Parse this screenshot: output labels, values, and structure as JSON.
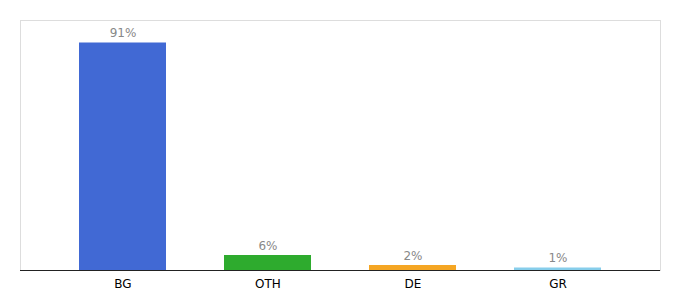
{
  "chart_data": {
    "type": "bar",
    "categories": [
      "BG",
      "OTH",
      "DE",
      "GR"
    ],
    "values": [
      91,
      6,
      2,
      1
    ],
    "value_labels": [
      "91%",
      "6%",
      "2%",
      "1%"
    ],
    "colors": [
      "#4169d4",
      "#2eab2e",
      "#f5a623",
      "#87ceeb"
    ],
    "ylim": [
      0,
      100
    ],
    "data_labels": true,
    "tick_labels": "x",
    "grid": false
  }
}
